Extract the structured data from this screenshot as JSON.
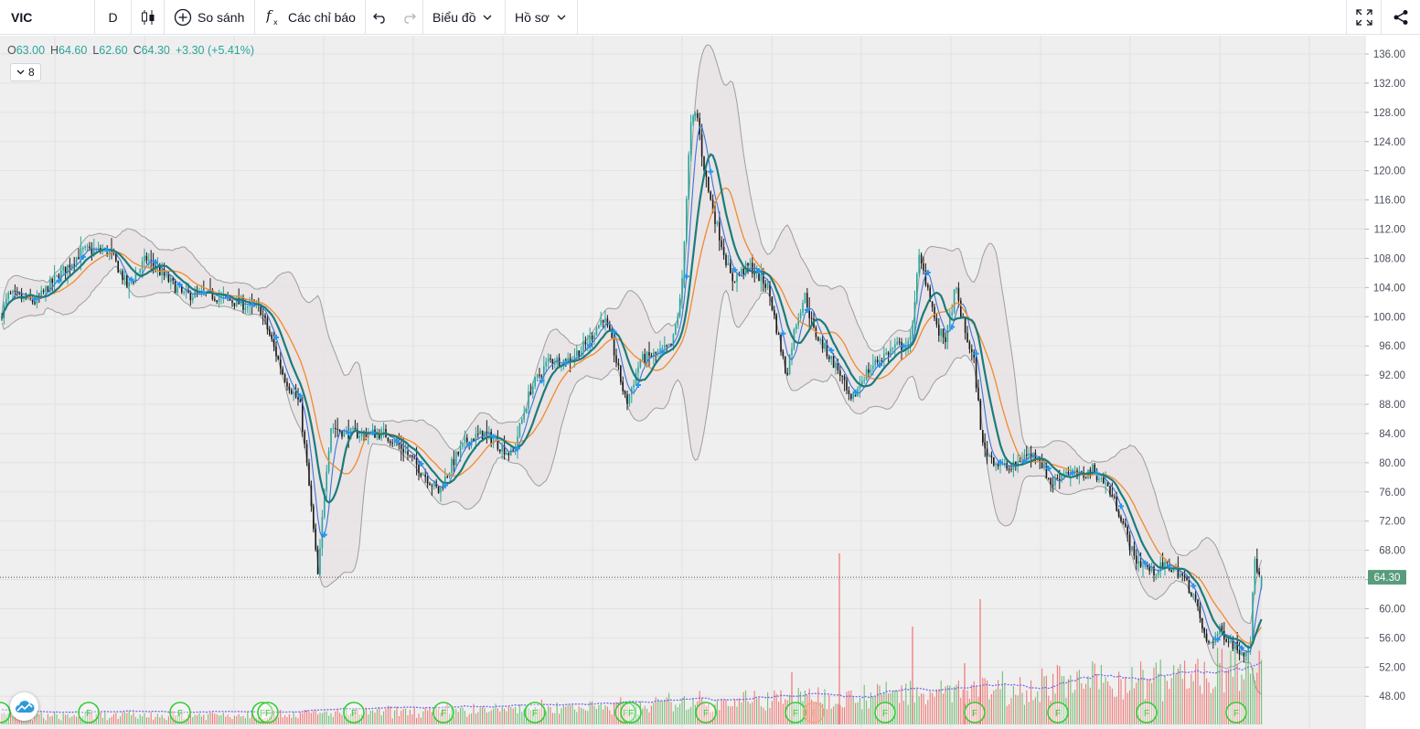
{
  "toolbar": {
    "symbol": "VIC",
    "interval": "D",
    "compare_label": "So sánh",
    "indicators_label": "Các chỉ báo",
    "chart_menu_label": "Biểu đồ",
    "profile_menu_label": "Hồ sơ"
  },
  "legend": {
    "o_label": "O",
    "o_value": "63.00",
    "h_label": "H",
    "h_value": "64.60",
    "l_label": "L",
    "l_value": "62.60",
    "c_label": "C",
    "c_value": "64.30",
    "change": "+3.30 (+5.41%)"
  },
  "studies_collapsed_count": "8",
  "price_axis": {
    "labels": [
      "136.00",
      "132.00",
      "128.00",
      "124.00",
      "120.00",
      "116.00",
      "112.00",
      "108.00",
      "104.00",
      "100.00",
      "96.00",
      "92.00",
      "88.00",
      "84.00",
      "80.00",
      "76.00",
      "72.00",
      "68.00",
      "64.00",
      "60.00",
      "56.00",
      "52.00",
      "48.00"
    ],
    "last_price_label": "64.30"
  },
  "colors": {
    "up": "#26a69a",
    "down": "#1a1a1a",
    "bb_fill": "#e8e2e4",
    "bb_line": "#9e9e9e",
    "ma_teal": "#1b7c79",
    "ma_blue": "#3b74d9",
    "ma_orange": "#f08a2c",
    "vol_up": "#4caf50",
    "vol_down": "#ef5350",
    "vol_ma": "#7b68ee",
    "event_green": "#33cc33",
    "event_orange": "#f4a582"
  },
  "event_markers": {
    "label": "F",
    "items": [
      "F",
      "F",
      "F",
      "F",
      "F",
      "F",
      "F",
      "F",
      "F",
      "F",
      "F",
      "F",
      "F",
      "F",
      "F",
      "F",
      "F",
      "F",
      "F"
    ]
  },
  "chart_data": {
    "type": "candlestick",
    "symbol": "VIC",
    "ylim": [
      46,
      138
    ],
    "anchors": [
      [
        0,
        100
      ],
      [
        10,
        103
      ],
      [
        40,
        102
      ],
      [
        52,
        104
      ],
      [
        90,
        109
      ],
      [
        120,
        109
      ],
      [
        140,
        104
      ],
      [
        160,
        108
      ],
      [
        200,
        103
      ],
      [
        230,
        103
      ],
      [
        285,
        101
      ],
      [
        310,
        92
      ],
      [
        328,
        88
      ],
      [
        337,
        78
      ],
      [
        348,
        64
      ],
      [
        355,
        77
      ],
      [
        362,
        85
      ],
      [
        380,
        84
      ],
      [
        420,
        84
      ],
      [
        440,
        82
      ],
      [
        460,
        79
      ],
      [
        480,
        76
      ],
      [
        495,
        80
      ],
      [
        510,
        83
      ],
      [
        530,
        84
      ],
      [
        560,
        81
      ],
      [
        580,
        90
      ],
      [
        600,
        94
      ],
      [
        620,
        94
      ],
      [
        640,
        96
      ],
      [
        660,
        100
      ],
      [
        670,
        96
      ],
      [
        685,
        88
      ],
      [
        700,
        94
      ],
      [
        720,
        95
      ],
      [
        735,
        96
      ],
      [
        745,
        103
      ],
      [
        755,
        126
      ],
      [
        762,
        128
      ],
      [
        768,
        122
      ],
      [
        775,
        117
      ],
      [
        785,
        112
      ],
      [
        800,
        105
      ],
      [
        820,
        107
      ],
      [
        840,
        104
      ],
      [
        850,
        98
      ],
      [
        860,
        92
      ],
      [
        870,
        99
      ],
      [
        880,
        103
      ],
      [
        890,
        98
      ],
      [
        905,
        95
      ],
      [
        920,
        92
      ],
      [
        930,
        88
      ],
      [
        945,
        92
      ],
      [
        960,
        94
      ],
      [
        980,
        96
      ],
      [
        995,
        96
      ],
      [
        1005,
        108
      ],
      [
        1015,
        104
      ],
      [
        1025,
        98
      ],
      [
        1035,
        97
      ],
      [
        1045,
        104
      ],
      [
        1055,
        98
      ],
      [
        1065,
        94
      ],
      [
        1075,
        82
      ],
      [
        1090,
        80
      ],
      [
        1105,
        79
      ],
      [
        1120,
        81
      ],
      [
        1135,
        81
      ],
      [
        1150,
        77
      ],
      [
        1165,
        79
      ],
      [
        1180,
        78
      ],
      [
        1195,
        79
      ],
      [
        1210,
        77
      ],
      [
        1225,
        73
      ],
      [
        1240,
        67
      ],
      [
        1260,
        65
      ],
      [
        1275,
        66
      ],
      [
        1290,
        65
      ],
      [
        1305,
        62
      ],
      [
        1320,
        55
      ],
      [
        1335,
        57
      ],
      [
        1350,
        55
      ],
      [
        1360,
        54
      ],
      [
        1368,
        56
      ],
      [
        1372,
        67
      ],
      [
        1378,
        64
      ]
    ],
    "volume_spikes": [
      [
        918,
        605
      ],
      [
        1072,
        655
      ],
      [
        998,
        685
      ],
      [
        866,
        735
      ],
      [
        1055,
        725
      ]
    ],
    "last_price": 64.3,
    "last_ohlc": {
      "open": 63.0,
      "high": 64.6,
      "low": 62.6,
      "close": 64.3,
      "change": 3.3,
      "change_pct": 5.41
    },
    "indicators": [
      "Bollinger Bands",
      "MA (teal)",
      "MA (blue)",
      "MA (orange)",
      "Volume",
      "Volume MA"
    ]
  }
}
